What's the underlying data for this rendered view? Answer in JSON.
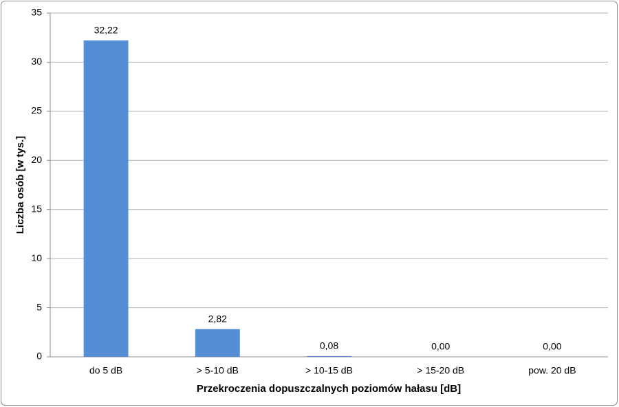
{
  "chart_data": {
    "type": "bar",
    "x_label": "Przekroczenia dopuszczalnych poziomów hałasu [dB]",
    "y_label": "Liczba osób [w tys.]",
    "categories": [
      "do 5 dB",
      "> 5-10 dB",
      "> 10-15 dB",
      "> 15-20 dB",
      "pow. 20 dB"
    ],
    "values": [
      32.22,
      2.82,
      0.08,
      0,
      0
    ],
    "value_labels": [
      "32,22",
      "2,82",
      "0,08",
      "0,00",
      "0,00"
    ],
    "color": "#558ed5",
    "ylim": [
      0,
      35
    ],
    "yticks": [
      0,
      5,
      10,
      15,
      20,
      25,
      30,
      35
    ],
    "grid": true
  }
}
